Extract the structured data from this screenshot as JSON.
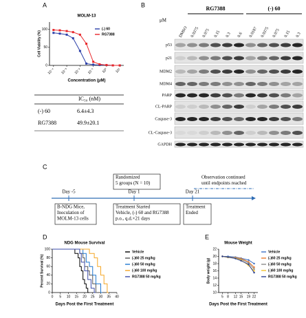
{
  "panels": [
    "A",
    "B",
    "C",
    "D",
    "E"
  ],
  "chart_data": [
    {
      "type": "line",
      "title": "MOLM-13",
      "xlabel": "Concentration (μM)",
      "ylabel": "Cell Viability (%)",
      "log_x": true,
      "marker": "square",
      "x": [
        0.0001,
        0.0003,
        0.001,
        0.003,
        0.01,
        0.03,
        0.1,
        0.3,
        1,
        3,
        10
      ],
      "series": [
        {
          "name": "(-) 60",
          "color": "#2b3fa8",
          "values": [
            90,
            88,
            85,
            75,
            40,
            5,
            2,
            1,
            1,
            0,
            0
          ]
        },
        {
          "name": "RG7388",
          "color": "#e8262a",
          "values": [
            98,
            97,
            95,
            92,
            85,
            60,
            10,
            3,
            1,
            0,
            0
          ]
        }
      ],
      "xlim": [
        5e-05,
        20
      ],
      "xticks": [
        {
          "value": 0.0001,
          "label": "10⁻⁴"
        },
        {
          "value": 0.001,
          "label": "10⁻³"
        },
        {
          "value": 0.01,
          "label": "10⁻²"
        },
        {
          "value": 0.1,
          "label": "10⁻¹"
        },
        {
          "value": 1,
          "label": "10⁰"
        },
        {
          "value": 10,
          "label": "10¹"
        }
      ],
      "ylim": [
        0,
        120
      ],
      "yticks": [
        0,
        50,
        100
      ]
    },
    {
      "type": "line",
      "step": true,
      "title": "NDG Mouse Survival",
      "xlabel": "Days Post the First Treatment",
      "ylabel": "Percent Survival (%)",
      "series": [
        {
          "name": "Vehicle",
          "color": "#000000",
          "x": [
            0,
            14,
            16,
            17,
            18,
            19,
            20,
            21,
            22
          ],
          "values": [
            100,
            90,
            80,
            60,
            50,
            30,
            20,
            10,
            0
          ]
        },
        {
          "name": "(-)60 25 mg/kg",
          "color": "#555555",
          "x": [
            0,
            17,
            19,
            20,
            22,
            23,
            25,
            27
          ],
          "values": [
            100,
            90,
            80,
            60,
            50,
            40,
            20,
            0
          ]
        },
        {
          "name": "(-)60 50 mg/kg",
          "color": "#1f77d0",
          "x": [
            0,
            19,
            21,
            23,
            25,
            27,
            30
          ],
          "values": [
            100,
            90,
            70,
            60,
            40,
            20,
            0
          ]
        },
        {
          "name": "(-)60 100 mg/kg",
          "color": "#f5a623",
          "x": [
            0,
            23,
            26,
            28,
            30,
            32,
            34
          ],
          "values": [
            100,
            90,
            80,
            60,
            40,
            20,
            0
          ]
        },
        {
          "name": "RG7388 50 mg/kg",
          "color": "#3b4ba8",
          "x": [
            0,
            17,
            18,
            20,
            22,
            24,
            26
          ],
          "values": [
            100,
            90,
            70,
            50,
            30,
            10,
            0
          ]
        }
      ],
      "xlim": [
        0,
        40
      ],
      "xticks": [
        0,
        5,
        10,
        15,
        20,
        25,
        30,
        35,
        40
      ],
      "ylim": [
        0,
        100
      ],
      "yticks": [
        0,
        20,
        40,
        60,
        80,
        100
      ]
    },
    {
      "type": "line",
      "marker": "circle",
      "title": "Mouse Weight",
      "xlabel": "Days Post the First Treatment",
      "ylabel": "Body weight (g)",
      "x": [
        5,
        8,
        12,
        15,
        19,
        22
      ],
      "series": [
        {
          "name": "Vehicle",
          "color": "#3b6fc4",
          "values": [
            20,
            20,
            19.8,
            19.5,
            19,
            18
          ]
        },
        {
          "name": "(-)60 25 mg/kg",
          "color": "#e8772a",
          "values": [
            20,
            19.8,
            19.7,
            19.4,
            18.5,
            17
          ]
        },
        {
          "name": "(-)60 50 mg/kg",
          "color": "#8a8a8a",
          "values": [
            20,
            19.9,
            19.6,
            19.2,
            18.2,
            16.5
          ]
        },
        {
          "name": "(-)60 100 mg/kg",
          "color": "#f2c12e",
          "values": [
            20,
            19.7,
            19.5,
            19,
            17.5,
            16
          ]
        },
        {
          "name": "RG7388 50 mg/kg",
          "color": "#2a3f8f",
          "values": [
            20,
            19.8,
            19.4,
            18.8,
            17.8,
            15.5
          ]
        }
      ],
      "xlim": [
        3,
        24
      ],
      "xticks": [
        5,
        8,
        12,
        15,
        19,
        22
      ],
      "ylim": [
        10,
        22
      ],
      "yticks": [
        10,
        12,
        14,
        16,
        18,
        20,
        22
      ]
    }
  ],
  "table": {
    "header": "IC₅₀ (nM)",
    "rows": [
      [
        "(-) 60",
        "6.4±4.3"
      ],
      [
        "RG7388",
        "49.9±20.1"
      ]
    ]
  },
  "blot": {
    "unit": "μM",
    "control": "DMSO",
    "groups": [
      {
        "name": "RG7388",
        "lanes": [
          "0.0375",
          "0.075",
          "0.15",
          "0.3",
          "0.6"
        ]
      },
      {
        "name": "(-) 60",
        "lanes": [
          "0.0187",
          "0.0375",
          "0.075",
          "0.15",
          "0.3"
        ]
      }
    ],
    "proteins": [
      "p53",
      "p21",
      "MDM2",
      "MDM4",
      "PARP",
      "CL-PARP",
      "Caspase-3",
      "CL-Caspase-3",
      "GAPDH"
    ]
  },
  "timeline": {
    "days": [
      "Day -5",
      "Day 1",
      "Day 21"
    ],
    "boxes": [
      {
        "lines": [
          "Randomized",
          "5 groups (N = 10)"
        ]
      },
      {
        "lines": [
          "Observation continued",
          "until endpoints reached"
        ]
      },
      {
        "lines": [
          "B-NDG Mice,",
          "Inoculation of",
          "MOLM-13 cells"
        ]
      },
      {
        "lines": [
          "Treatment Started",
          "Vehicle, (-) 60 and RG7388",
          "p.o., q.d.×21 days"
        ]
      },
      {
        "lines": [
          "Treatment",
          "Ended"
        ]
      }
    ]
  }
}
